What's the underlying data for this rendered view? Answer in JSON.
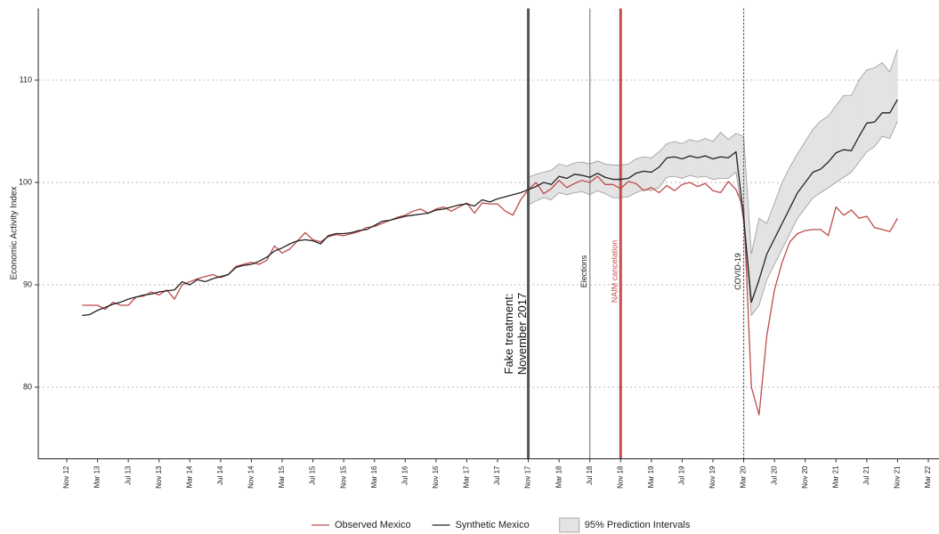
{
  "chart_data": {
    "type": "line",
    "y_label": "Economic Activity Index",
    "categories": [
      "Nov 12",
      null,
      null,
      null,
      "Mar 13",
      null,
      null,
      null,
      "Jul 13",
      null,
      null,
      null,
      "Nov 13",
      null,
      null,
      null,
      "Mar 14",
      null,
      null,
      null,
      "Jul 14",
      null,
      null,
      null,
      "Nov 14",
      null,
      null,
      null,
      "Mar 15",
      null,
      null,
      null,
      "Jul 15",
      null,
      null,
      null,
      "Nov 15",
      null,
      null,
      null,
      "Mar 16",
      null,
      null,
      null,
      "Jul 16",
      null,
      null,
      null,
      "Nov 16",
      null,
      null,
      null,
      "Mar 17",
      null,
      null,
      null,
      "Jul 17",
      null,
      null,
      null,
      "Nov 17",
      null,
      null,
      null,
      "Mar 18",
      null,
      null,
      null,
      "Jul 18",
      null,
      null,
      null,
      "Nov 18",
      null,
      null,
      null,
      "Mar 19",
      null,
      null,
      null,
      "Jul 19",
      null,
      null,
      null,
      "Nov 19",
      null,
      null,
      null,
      "Mar 20",
      null,
      null,
      null,
      "Jul 20",
      null,
      null,
      null,
      "Nov 20",
      null,
      null,
      null,
      "Mar 21",
      null,
      null,
      null,
      "Jul 21",
      null,
      null,
      null,
      "Nov 21",
      null,
      null,
      null,
      "Mar 22"
    ],
    "series": [
      {
        "name": "Observed Mexico",
        "color": "#bf4b4b",
        "values": [
          null,
          null,
          88.0,
          88.0,
          88.0,
          87.6,
          88.3,
          88.0,
          88.0,
          88.8,
          88.9,
          89.3,
          89.0,
          89.5,
          88.6,
          90.0,
          90.3,
          90.6,
          90.8,
          91.0,
          90.7,
          91.0,
          91.8,
          92.0,
          92.2,
          92.0,
          92.4,
          93.8,
          93.1,
          93.5,
          94.3,
          95.1,
          94.4,
          94.2,
          94.7,
          94.9,
          94.8,
          95.0,
          95.2,
          95.6,
          95.7,
          96.0,
          96.3,
          96.6,
          96.8,
          97.2,
          97.4,
          97.0,
          97.4,
          97.6,
          97.2,
          97.6,
          98.0,
          97.0,
          98.0,
          97.9,
          97.9,
          97.2,
          96.8,
          98.3,
          99.3,
          100.0,
          98.9,
          99.4,
          100.2,
          99.5,
          99.9,
          100.2,
          100.0,
          100.6,
          99.8,
          99.8,
          99.4,
          100.1,
          99.9,
          99.2,
          99.5,
          99.0,
          99.7,
          99.2,
          99.8,
          100.0,
          99.6,
          99.9,
          99.2,
          99.0,
          100.1,
          99.3,
          97.5,
          80.0,
          77.3,
          85.0,
          89.5,
          92.2,
          94.2,
          95.0,
          95.3,
          95.4,
          95.4,
          94.8,
          97.6,
          96.8,
          97.3,
          96.5,
          96.7,
          95.6,
          95.4,
          95.2,
          96.5,
          null,
          null,
          null,
          null
        ]
      },
      {
        "name": "Synthetic Mexico",
        "color": "#222222",
        "values": [
          null,
          null,
          87.0,
          87.1,
          87.5,
          87.8,
          88.1,
          88.3,
          88.6,
          88.8,
          89.0,
          89.1,
          89.3,
          89.4,
          89.5,
          90.3,
          90.0,
          90.5,
          90.3,
          90.6,
          90.8,
          91.0,
          91.7,
          91.9,
          92.0,
          92.3,
          92.7,
          93.3,
          93.6,
          94.0,
          94.3,
          94.4,
          94.3,
          94.0,
          94.8,
          95.0,
          95.0,
          95.1,
          95.3,
          95.4,
          95.8,
          96.2,
          96.3,
          96.5,
          96.7,
          96.8,
          96.9,
          97.0,
          97.3,
          97.4,
          97.6,
          97.8,
          97.9,
          97.7,
          98.3,
          98.1,
          98.4,
          98.6,
          98.8,
          99.0,
          99.3,
          99.6,
          100.0,
          99.8,
          100.6,
          100.4,
          100.8,
          100.7,
          100.5,
          100.9,
          100.5,
          100.3,
          100.3,
          100.4,
          100.9,
          101.1,
          101.0,
          101.5,
          102.4,
          102.5,
          102.3,
          102.6,
          102.4,
          102.6,
          102.3,
          102.5,
          102.4,
          103.0,
          96.5,
          88.3,
          90.5,
          93.0,
          94.5,
          96.0,
          97.5,
          99.0,
          100.0,
          101.0,
          101.3,
          102.0,
          102.9,
          103.2,
          103.1,
          104.5,
          105.8,
          105.9,
          106.8,
          106.8,
          108.1,
          null,
          null,
          null,
          null
        ]
      }
    ],
    "band": {
      "name": "95% Prediction Intervals",
      "color": "#e3e3e3",
      "upper": [
        null,
        null,
        null,
        null,
        null,
        null,
        null,
        null,
        null,
        null,
        null,
        null,
        null,
        null,
        null,
        null,
        null,
        null,
        null,
        null,
        null,
        null,
        null,
        null,
        null,
        null,
        null,
        null,
        null,
        null,
        null,
        null,
        null,
        null,
        null,
        null,
        null,
        null,
        null,
        null,
        null,
        null,
        null,
        null,
        null,
        null,
        null,
        null,
        null,
        null,
        null,
        null,
        null,
        null,
        null,
        null,
        null,
        null,
        null,
        null,
        100.5,
        100.8,
        101.0,
        101.2,
        101.8,
        101.6,
        101.9,
        102.0,
        101.8,
        102.1,
        101.8,
        101.7,
        101.7,
        101.8,
        102.3,
        102.5,
        102.4,
        103.0,
        103.8,
        104.0,
        103.8,
        104.2,
        104.0,
        104.3,
        104.0,
        104.9,
        104.2,
        104.8,
        104.5,
        93.0,
        96.5,
        96.0,
        98.0,
        100.0,
        101.5,
        102.8,
        104.0,
        105.2,
        106.0,
        106.5,
        107.5,
        108.5,
        108.5,
        110.0,
        111.0,
        111.2,
        111.7,
        110.8,
        113.0,
        null,
        null,
        null,
        null
      ],
      "lower": [
        null,
        null,
        null,
        null,
        null,
        null,
        null,
        null,
        null,
        null,
        null,
        null,
        null,
        null,
        null,
        null,
        null,
        null,
        null,
        null,
        null,
        null,
        null,
        null,
        null,
        null,
        null,
        null,
        null,
        null,
        null,
        null,
        null,
        null,
        null,
        null,
        null,
        null,
        null,
        null,
        null,
        null,
        null,
        null,
        null,
        null,
        null,
        null,
        null,
        null,
        null,
        null,
        null,
        null,
        null,
        null,
        null,
        null,
        null,
        null,
        97.8,
        98.2,
        98.5,
        98.3,
        99.0,
        98.8,
        99.0,
        99.1,
        98.8,
        99.2,
        98.9,
        98.5,
        98.5,
        98.6,
        99.0,
        99.3,
        99.2,
        99.5,
        100.5,
        100.6,
        100.4,
        100.7,
        100.5,
        100.6,
        100.3,
        100.4,
        100.4,
        101.0,
        96.0,
        87.0,
        88.0,
        90.5,
        92.0,
        93.5,
        95.0,
        96.5,
        97.5,
        98.5,
        99.0,
        99.5,
        100.0,
        100.5,
        101.0,
        102.0,
        103.0,
        103.5,
        104.5,
        104.3,
        106.0,
        null,
        null,
        null,
        null
      ]
    },
    "events": [
      {
        "x": "Nov 17",
        "label": [
          "Fake treatment:",
          "November 2017"
        ],
        "color": "#555555",
        "style": "solid",
        "width": 3,
        "text_color": "#111111"
      },
      {
        "x": "Jul 18",
        "label": [
          "Elections"
        ],
        "color": "#999999",
        "style": "solid",
        "width": 1.5,
        "text_color": "#222222"
      },
      {
        "x": "Nov 18",
        "label": [
          "NAIM cancelation"
        ],
        "color": "#c0504d",
        "style": "solid",
        "width": 3,
        "text_color": "#c0504d"
      },
      {
        "x": "Mar 20",
        "label": [
          "COVID-19"
        ],
        "color": "#444444",
        "style": "dotted",
        "width": 1.2,
        "text_color": "#222222"
      }
    ],
    "ylim": [
      73,
      117
    ],
    "yticks": [
      80,
      90,
      100,
      110
    ],
    "grid": true
  }
}
